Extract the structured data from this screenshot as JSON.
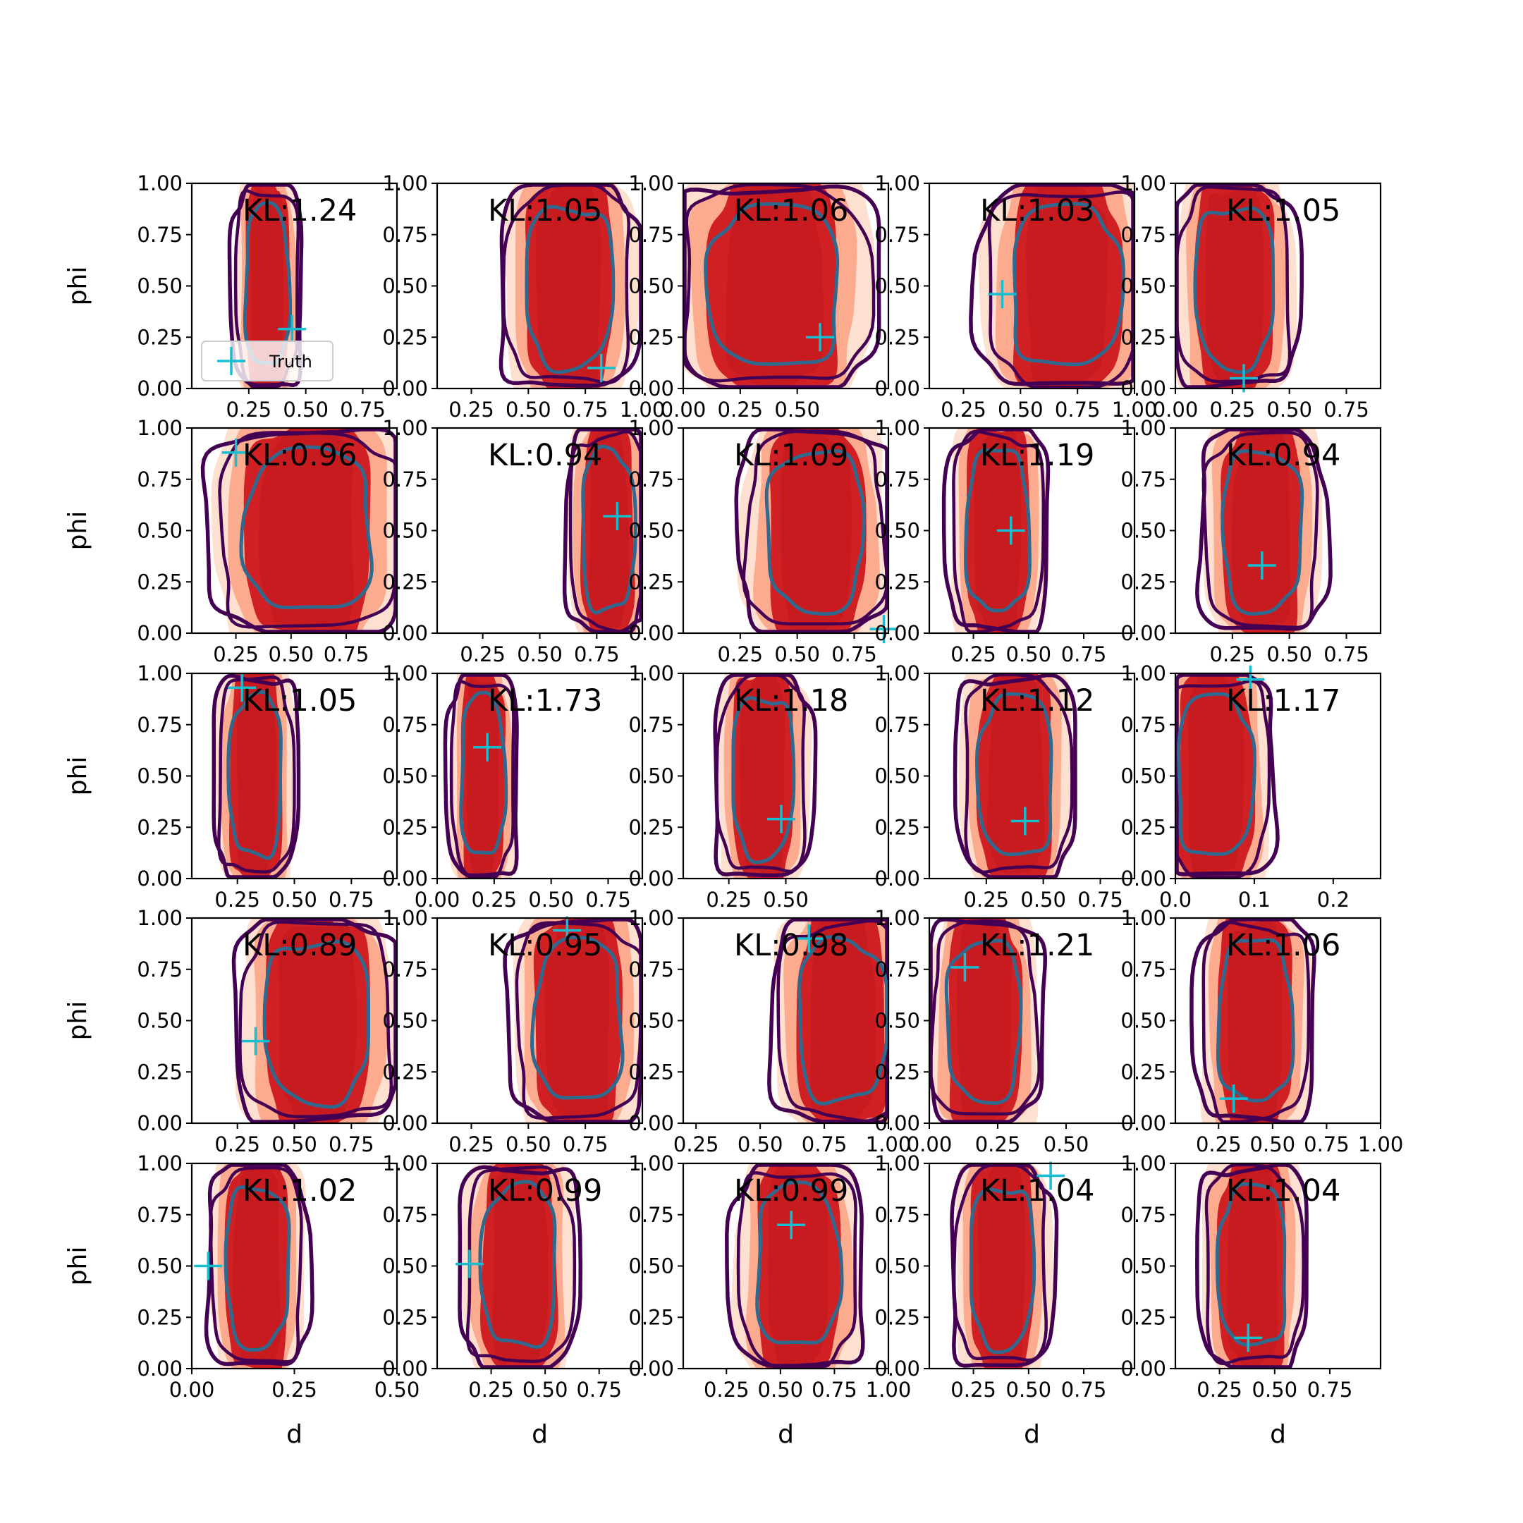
{
  "chart_data": {
    "type": "contour",
    "rows": 5,
    "cols": 5,
    "xlabel": "d",
    "ylabel": "phi",
    "legend": {
      "label": "Truth",
      "placement": "bottom-left of first panel"
    },
    "colors": {
      "fill_light": "#fde0d0",
      "fill_mid": "#fcab8f",
      "fill_dark": "#d02024",
      "fill_core": "#c81b1f",
      "contour_outer": "#440154",
      "contour_inner": "#31688e",
      "truth": "#17becf"
    },
    "panels": [
      {
        "kl": "KL:1.24",
        "xlim": [
          0.0,
          0.9
        ],
        "xticks": [
          "0.25",
          "0.50",
          "0.75"
        ],
        "xtick_vals": [
          0.25,
          0.5,
          0.75
        ],
        "center": [
          0.33,
          0.5
        ],
        "sx": 0.1,
        "truth": [
          0.44,
          0.29
        ],
        "legend": true
      },
      {
        "kl": "KL:1.05",
        "xlim": [
          0.1,
          1.0
        ],
        "xticks": [
          "0.25",
          "0.50",
          "0.75",
          "1.00"
        ],
        "xtick_vals": [
          0.25,
          0.5,
          0.75,
          1.0
        ],
        "center": [
          0.68,
          0.5
        ],
        "sx": 0.2,
        "truth": [
          0.82,
          0.1
        ]
      },
      {
        "kl": "KL:1.06",
        "xlim": [
          0.0,
          0.9
        ],
        "xticks": [
          "0.00",
          "0.25",
          "0.50"
        ],
        "xtick_vals": [
          0.0,
          0.25,
          0.5
        ],
        "center": [
          0.4,
          0.5
        ],
        "sx": 0.3,
        "truth": [
          0.6,
          0.25
        ]
      },
      {
        "kl": "KL:1.03",
        "xlim": [
          0.1,
          1.0
        ],
        "xticks": [
          "0.25",
          "0.50",
          "0.75",
          "1.00"
        ],
        "xtick_vals": [
          0.25,
          0.5,
          0.75,
          1.0
        ],
        "center": [
          0.7,
          0.5
        ],
        "sx": 0.25,
        "truth": [
          0.42,
          0.46
        ]
      },
      {
        "kl": "KL:1.05",
        "xlim": [
          0.0,
          0.9
        ],
        "xticks": [
          "0.00",
          "0.25",
          "0.50",
          "0.75"
        ],
        "xtick_vals": [
          0.0,
          0.25,
          0.5,
          0.75
        ],
        "center": [
          0.26,
          0.5
        ],
        "sx": 0.18,
        "truth": [
          0.3,
          0.05
        ]
      },
      {
        "kl": "KL:0.96",
        "xlim": [
          0.05,
          0.98
        ],
        "xticks": [
          "0.25",
          "0.50",
          "0.75",
          "1.00"
        ],
        "xtick_vals": [
          0.25,
          0.5,
          0.75,
          1.0
        ],
        "center": [
          0.58,
          0.5
        ],
        "sx": 0.3,
        "truth": [
          0.25,
          0.88
        ]
      },
      {
        "kl": "KL:0.94",
        "xlim": [
          0.05,
          0.95
        ],
        "xticks": [
          "0.25",
          "0.50",
          "0.75",
          "1.00"
        ],
        "xtick_vals": [
          0.25,
          0.5,
          0.75,
          1.0
        ],
        "center": [
          0.8,
          0.5
        ],
        "sx": 0.12,
        "truth": [
          0.84,
          0.57
        ]
      },
      {
        "kl": "KL:1.09",
        "xlim": [
          0.0,
          0.9
        ],
        "xticks": [
          "0.25",
          "0.50",
          "0.75",
          "1.00"
        ],
        "xtick_vals": [
          0.25,
          0.5,
          0.75,
          1.0
        ],
        "center": [
          0.58,
          0.5
        ],
        "sx": 0.22,
        "truth": [
          0.88,
          0.02
        ]
      },
      {
        "kl": "KL:1.19",
        "xlim": [
          0.05,
          0.98
        ],
        "xticks": [
          "0.25",
          "0.50",
          "0.75"
        ],
        "xtick_vals": [
          0.25,
          0.5,
          0.75
        ],
        "center": [
          0.36,
          0.5
        ],
        "sx": 0.15,
        "truth": [
          0.42,
          0.5
        ]
      },
      {
        "kl": "KL:0.94",
        "xlim": [
          0.0,
          0.9
        ],
        "xticks": [
          "0.25",
          "0.50",
          "0.75"
        ],
        "xtick_vals": [
          0.25,
          0.5,
          0.75
        ],
        "center": [
          0.38,
          0.5
        ],
        "sx": 0.18,
        "truth": [
          0.38,
          0.33
        ]
      },
      {
        "kl": "KL:1.05",
        "xlim": [
          0.05,
          0.95
        ],
        "xticks": [
          "0.25",
          "0.50",
          "0.75",
          "1.00"
        ],
        "xtick_vals": [
          0.25,
          0.5,
          0.75,
          1.0
        ],
        "center": [
          0.33,
          0.5
        ],
        "sx": 0.12,
        "truth": [
          0.27,
          0.93
        ]
      },
      {
        "kl": "KL:1.73",
        "xlim": [
          0.0,
          0.9
        ],
        "xticks": [
          "0.00",
          "0.25",
          "0.50",
          "0.75"
        ],
        "xtick_vals": [
          0.0,
          0.25,
          0.5,
          0.75
        ],
        "center": [
          0.2,
          0.5
        ],
        "sx": 0.1,
        "truth": [
          0.22,
          0.64
        ]
      },
      {
        "kl": "KL:1.18",
        "xlim": [
          0.05,
          0.95
        ],
        "xticks": [
          "0.25",
          "0.50"
        ],
        "xtick_vals": [
          0.25,
          0.5
        ],
        "center": [
          0.4,
          0.5
        ],
        "sx": 0.14,
        "truth": [
          0.48,
          0.29
        ]
      },
      {
        "kl": "KL:1.12",
        "xlim": [
          0.0,
          0.9
        ],
        "xticks": [
          "0.25",
          "0.50",
          "0.75",
          "1.00"
        ],
        "xtick_vals": [
          0.25,
          0.5,
          0.75,
          1.0
        ],
        "center": [
          0.38,
          0.5
        ],
        "sx": 0.17,
        "truth": [
          0.42,
          0.28
        ]
      },
      {
        "kl": "KL:1.17",
        "xlim": [
          0.0,
          0.26
        ],
        "xticks": [
          "0.0",
          "0.1",
          "0.2"
        ],
        "xtick_vals": [
          0.0,
          0.1,
          0.2
        ],
        "center": [
          0.05,
          0.5
        ],
        "sx": 0.05,
        "truth": [
          0.095,
          0.97
        ]
      },
      {
        "kl": "KL:0.89",
        "xlim": [
          0.05,
          0.95
        ],
        "xticks": [
          "0.25",
          "0.50",
          "0.75",
          "1.00"
        ],
        "xtick_vals": [
          0.25,
          0.5,
          0.75,
          1.0
        ],
        "center": [
          0.6,
          0.5
        ],
        "sx": 0.24,
        "truth": [
          0.33,
          0.4
        ]
      },
      {
        "kl": "KL:0.95",
        "xlim": [
          0.1,
          1.0
        ],
        "xticks": [
          "0.25",
          "0.50",
          "0.75"
        ],
        "xtick_vals": [
          0.25,
          0.5,
          0.75
        ],
        "center": [
          0.72,
          0.5
        ],
        "sx": 0.2,
        "truth": [
          0.67,
          0.94
        ]
      },
      {
        "kl": "KL:0.98",
        "xlim": [
          0.2,
          1.0
        ],
        "xticks": [
          "0.25",
          "0.50",
          "0.75",
          "1.00"
        ],
        "xtick_vals": [
          0.25,
          0.5,
          0.75,
          1.0
        ],
        "center": [
          0.82,
          0.5
        ],
        "sx": 0.18,
        "truth": [
          0.69,
          0.9
        ]
      },
      {
        "kl": "KL:1.21",
        "xlim": [
          0.0,
          0.75
        ],
        "xticks": [
          "0.00",
          "0.25",
          "0.50"
        ],
        "xtick_vals": [
          0.0,
          0.25,
          0.5
        ],
        "center": [
          0.2,
          0.5
        ],
        "sx": 0.14,
        "truth": [
          0.13,
          0.76
        ]
      },
      {
        "kl": "KL:1.06",
        "xlim": [
          0.05,
          1.0
        ],
        "xticks": [
          "0.25",
          "0.50",
          "0.75",
          "1.00"
        ],
        "xtick_vals": [
          0.25,
          0.5,
          0.75,
          1.0
        ],
        "center": [
          0.42,
          0.5
        ],
        "sx": 0.18,
        "truth": [
          0.32,
          0.12
        ]
      },
      {
        "kl": "KL:1.02",
        "xlim": [
          0.0,
          0.5
        ],
        "xticks": [
          "0.00",
          "0.25",
          "0.50"
        ],
        "xtick_vals": [
          0.0,
          0.25,
          0.5
        ],
        "center": [
          0.16,
          0.5
        ],
        "sx": 0.08,
        "truth": [
          0.04,
          0.5
        ]
      },
      {
        "kl": "KL:0.99",
        "xlim": [
          0.0,
          0.95
        ],
        "xticks": [
          "0.25",
          "0.50",
          "0.75"
        ],
        "xtick_vals": [
          0.25,
          0.5,
          0.75
        ],
        "center": [
          0.38,
          0.5
        ],
        "sx": 0.18,
        "truth": [
          0.15,
          0.51
        ]
      },
      {
        "kl": "KL:0.99",
        "xlim": [
          0.05,
          1.0
        ],
        "xticks": [
          "0.25",
          "0.50",
          "0.75",
          "1.00"
        ],
        "xtick_vals": [
          0.25,
          0.5,
          0.75,
          1.0
        ],
        "center": [
          0.58,
          0.5
        ],
        "sx": 0.2,
        "truth": [
          0.55,
          0.7
        ]
      },
      {
        "kl": "KL:1.04",
        "xlim": [
          0.05,
          0.98
        ],
        "xticks": [
          "0.25",
          "0.50",
          "0.75"
        ],
        "xtick_vals": [
          0.25,
          0.5,
          0.75
        ],
        "center": [
          0.38,
          0.5
        ],
        "sx": 0.15,
        "truth": [
          0.6,
          0.94
        ]
      },
      {
        "kl": "KL:1.04",
        "xlim": [
          0.05,
          0.98
        ],
        "xticks": [
          "0.25",
          "0.50",
          "0.75"
        ],
        "xtick_vals": [
          0.25,
          0.5,
          0.75
        ],
        "center": [
          0.4,
          0.5
        ],
        "sx": 0.16,
        "truth": [
          0.38,
          0.15
        ]
      }
    ],
    "yticks": [
      "0.00",
      "0.25",
      "0.50",
      "0.75",
      "1.00"
    ],
    "ytick_vals": [
      0.0,
      0.25,
      0.5,
      0.75,
      1.0
    ]
  }
}
